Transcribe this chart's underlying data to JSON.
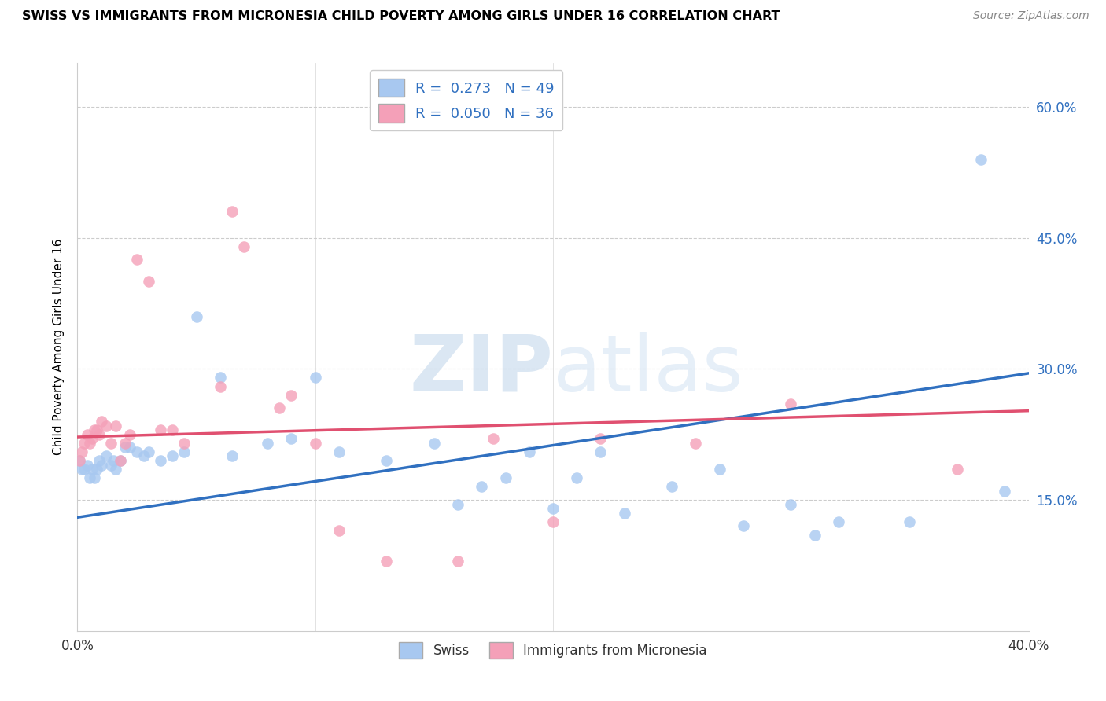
{
  "title": "SWISS VS IMMIGRANTS FROM MICRONESIA CHILD POVERTY AMONG GIRLS UNDER 16 CORRELATION CHART",
  "source": "Source: ZipAtlas.com",
  "ylabel": "Child Poverty Among Girls Under 16",
  "ytick_labels": [
    "15.0%",
    "30.0%",
    "45.0%",
    "60.0%"
  ],
  "ytick_values": [
    0.15,
    0.3,
    0.45,
    0.6
  ],
  "xlim": [
    0.0,
    0.4
  ],
  "ylim": [
    0.0,
    0.65
  ],
  "swiss_R": 0.273,
  "swiss_N": 49,
  "micro_R": 0.05,
  "micro_N": 36,
  "swiss_color": "#A8C8F0",
  "micro_color": "#F4A0B8",
  "swiss_line_color": "#3070C0",
  "micro_line_color": "#E05070",
  "watermark_color": "#D0E4F4",
  "swiss_x": [
    0.001,
    0.002,
    0.003,
    0.004,
    0.005,
    0.006,
    0.007,
    0.008,
    0.009,
    0.01,
    0.012,
    0.014,
    0.015,
    0.016,
    0.018,
    0.02,
    0.022,
    0.025,
    0.028,
    0.03,
    0.035,
    0.04,
    0.045,
    0.05,
    0.06,
    0.065,
    0.08,
    0.09,
    0.1,
    0.11,
    0.13,
    0.15,
    0.16,
    0.17,
    0.18,
    0.19,
    0.2,
    0.21,
    0.22,
    0.23,
    0.25,
    0.27,
    0.28,
    0.3,
    0.31,
    0.32,
    0.35,
    0.38,
    0.39
  ],
  "swiss_y": [
    0.195,
    0.185,
    0.185,
    0.19,
    0.175,
    0.185,
    0.175,
    0.185,
    0.195,
    0.19,
    0.2,
    0.19,
    0.195,
    0.185,
    0.195,
    0.21,
    0.21,
    0.205,
    0.2,
    0.205,
    0.195,
    0.2,
    0.205,
    0.36,
    0.29,
    0.2,
    0.215,
    0.22,
    0.29,
    0.205,
    0.195,
    0.215,
    0.145,
    0.165,
    0.175,
    0.205,
    0.14,
    0.175,
    0.205,
    0.135,
    0.165,
    0.185,
    0.12,
    0.145,
    0.11,
    0.125,
    0.125,
    0.54,
    0.16
  ],
  "micro_x": [
    0.001,
    0.002,
    0.003,
    0.004,
    0.005,
    0.006,
    0.007,
    0.008,
    0.009,
    0.01,
    0.012,
    0.014,
    0.016,
    0.018,
    0.02,
    0.022,
    0.025,
    0.03,
    0.035,
    0.04,
    0.045,
    0.06,
    0.065,
    0.07,
    0.085,
    0.09,
    0.1,
    0.11,
    0.13,
    0.16,
    0.175,
    0.2,
    0.22,
    0.26,
    0.3,
    0.37
  ],
  "micro_y": [
    0.195,
    0.205,
    0.215,
    0.225,
    0.215,
    0.22,
    0.23,
    0.23,
    0.225,
    0.24,
    0.235,
    0.215,
    0.235,
    0.195,
    0.215,
    0.225,
    0.425,
    0.4,
    0.23,
    0.23,
    0.215,
    0.28,
    0.48,
    0.44,
    0.255,
    0.27,
    0.215,
    0.115,
    0.08,
    0.08,
    0.22,
    0.125,
    0.22,
    0.215,
    0.26,
    0.185
  ],
  "blue_line_x0": 0.0,
  "blue_line_y0": 0.13,
  "blue_line_x1": 0.4,
  "blue_line_y1": 0.295,
  "pink_line_x0": 0.0,
  "pink_line_y0": 0.222,
  "pink_line_x1": 0.4,
  "pink_line_y1": 0.252
}
